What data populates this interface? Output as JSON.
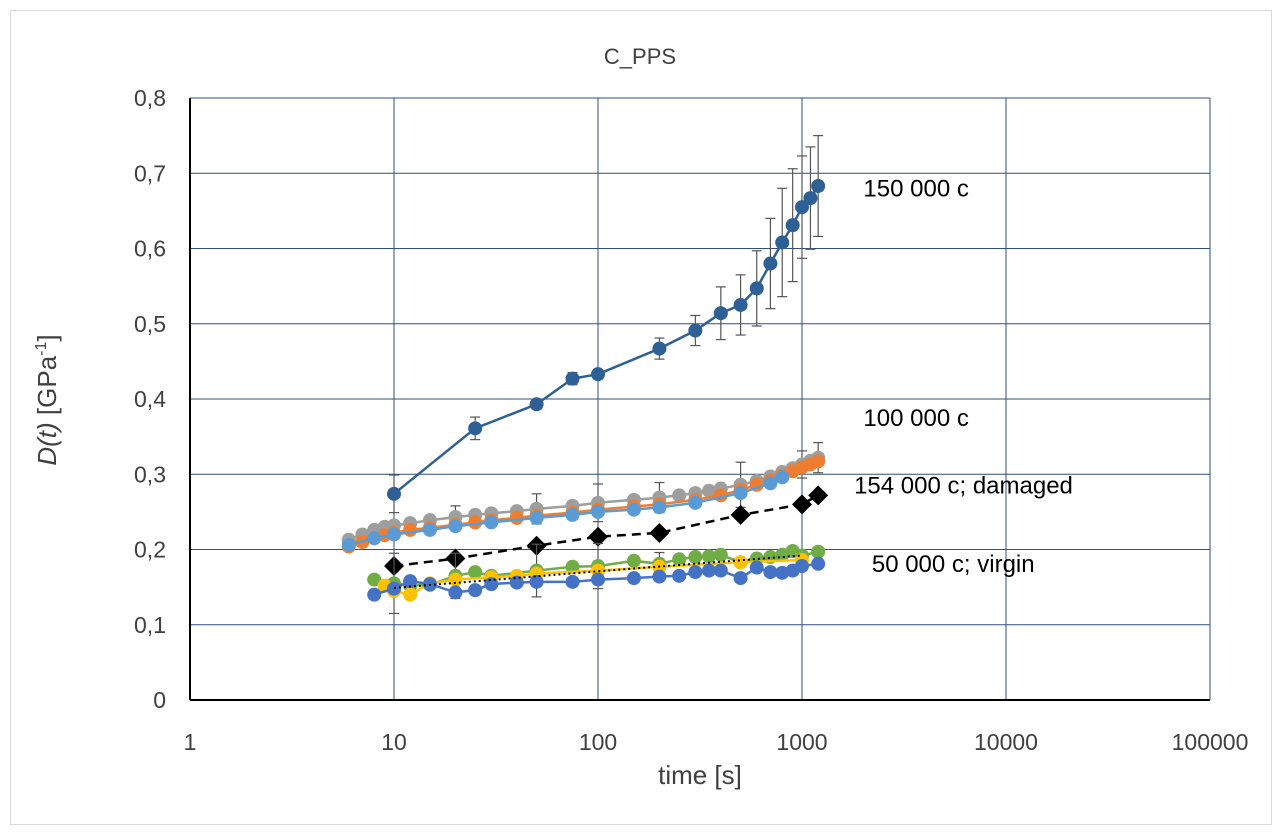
{
  "chart_data": {
    "type": "scatter",
    "title": "C_PPS",
    "xlabel": "time [s]",
    "ylabel": {
      "italic": "D(t)",
      "rest": " [GPa",
      "sup": "-1",
      "close": "]"
    },
    "xscale": "log",
    "xlim": [
      1,
      100000
    ],
    "ylim": [
      0,
      0.8
    ],
    "x_ticks": [
      "1",
      "10",
      "100",
      "1000",
      "10000",
      "100000"
    ],
    "y_ticks": [
      "0",
      "0,1",
      "0,2",
      "0,3",
      "0,4",
      "0,5",
      "0,6",
      "0,7",
      "0,8"
    ],
    "grid": true,
    "annotations": [
      {
        "text": "150 000 c",
        "x": 2000,
        "y": 0.68
      },
      {
        "text": "100 000 c",
        "x": 2000,
        "y": 0.375
      },
      {
        "text": "154 000 c; damaged",
        "x": 1800,
        "y": 0.285
      },
      {
        "text": "50 000 c; virgin",
        "x": 2200,
        "y": 0.181
      }
    ],
    "series": [
      {
        "color": "#2e5f95",
        "marker": "circle",
        "line": "solid",
        "x": [
          10,
          25,
          50,
          75,
          100,
          200,
          300,
          400,
          500,
          600,
          700,
          800,
          900,
          1000,
          1100,
          1200
        ],
        "y": [
          0.274,
          0.361,
          0.393,
          0.427,
          0.433,
          0.467,
          0.491,
          0.514,
          0.525,
          0.547,
          0.58,
          0.608,
          0.631,
          0.655,
          0.667,
          0.683
        ],
        "err": [
          0.025,
          0.015,
          0.006,
          0.008,
          0.006,
          0.014,
          0.02,
          0.035,
          0.04,
          0.05,
          0.06,
          0.072,
          0.075,
          0.068,
          0.068,
          0.067
        ]
      },
      {
        "color": "#9e9e9e",
        "marker": "circle",
        "line": "solid",
        "x": [
          6,
          7,
          8,
          9,
          10,
          12,
          15,
          20,
          25,
          30,
          40,
          50,
          75,
          100,
          150,
          200,
          250,
          300,
          350,
          400,
          500,
          600,
          700,
          800,
          900,
          1000,
          1100,
          1200
        ],
        "y": [
          0.213,
          0.22,
          0.226,
          0.23,
          0.232,
          0.235,
          0.239,
          0.243,
          0.246,
          0.248,
          0.251,
          0.254,
          0.258,
          0.262,
          0.266,
          0.269,
          0.272,
          0.275,
          0.278,
          0.281,
          0.286,
          0.291,
          0.297,
          0.303,
          0.308,
          0.313,
          0.318,
          0.322
        ],
        "err_points": [
          [
            20,
            0.015
          ],
          [
            50,
            0.02
          ],
          [
            100,
            0.025
          ],
          [
            200,
            0.02
          ],
          [
            500,
            0.03
          ],
          [
            1000,
            0.018
          ],
          [
            1200,
            0.02
          ]
        ]
      },
      {
        "color": "#ed7d31",
        "marker": "circle",
        "line": "solid",
        "x": [
          6,
          7,
          8,
          9,
          10,
          12,
          15,
          20,
          25,
          30,
          40,
          50,
          75,
          100,
          150,
          200,
          300,
          400,
          500,
          600,
          700,
          800,
          900,
          1000,
          1100,
          1200
        ],
        "y": [
          0.204,
          0.21,
          0.215,
          0.219,
          0.222,
          0.226,
          0.229,
          0.233,
          0.236,
          0.239,
          0.242,
          0.245,
          0.249,
          0.253,
          0.257,
          0.26,
          0.266,
          0.272,
          0.279,
          0.286,
          0.292,
          0.298,
          0.304,
          0.309,
          0.313,
          0.317
        ]
      },
      {
        "color": "#5b9bd5",
        "marker": "circle",
        "line": "solid",
        "x": [
          6,
          8,
          10,
          15,
          20,
          30,
          50,
          75,
          100,
          150,
          200,
          300,
          500,
          700,
          800
        ],
        "y": [
          0.206,
          0.215,
          0.22,
          0.226,
          0.231,
          0.236,
          0.242,
          0.246,
          0.25,
          0.253,
          0.256,
          0.262,
          0.275,
          0.288,
          0.296
        ]
      },
      {
        "color": "#000000",
        "marker": "diamond",
        "line": "dashed",
        "x": [
          10,
          20,
          50,
          100,
          200,
          500,
          1000,
          1200
        ],
        "y": [
          0.178,
          0.188,
          0.205,
          0.217,
          0.222,
          0.246,
          0.26,
          0.272
        ],
        "err": [
          0.0,
          0.0,
          0.0,
          0.0,
          0.0,
          0.0,
          0.0,
          0.0
        ]
      },
      {
        "color": "#70ad47",
        "marker": "circle",
        "line": "solid",
        "x": [
          8,
          10,
          12,
          15,
          20,
          25,
          30,
          50,
          75,
          100,
          150,
          200,
          250,
          300,
          350,
          400,
          500,
          600,
          700,
          800,
          900,
          1000,
          1200
        ],
        "y": [
          0.16,
          0.155,
          0.152,
          0.153,
          0.165,
          0.17,
          0.165,
          0.172,
          0.177,
          0.178,
          0.185,
          0.181,
          0.187,
          0.19,
          0.191,
          0.193,
          0.183,
          0.188,
          0.19,
          0.193,
          0.198,
          0.192,
          0.197
        ],
        "err_points": [
          [
            10,
            0.04
          ],
          [
            20,
            0.03
          ],
          [
            50,
            0.035
          ],
          [
            100,
            0.03
          ],
          [
            200,
            0.015
          ]
        ]
      },
      {
        "color": "#ffc000",
        "marker": "circle",
        "line": "solid",
        "x": [
          9,
          10,
          12,
          15,
          20,
          30,
          40,
          50,
          100,
          200,
          500,
          1000
        ],
        "y": [
          0.152,
          0.145,
          0.14,
          0.155,
          0.16,
          0.163,
          0.165,
          0.168,
          0.172,
          0.177,
          0.183,
          0.186
        ]
      },
      {
        "color": "#4472c4",
        "marker": "circle",
        "line": "solid",
        "x": [
          8,
          10,
          12,
          15,
          20,
          25,
          30,
          40,
          50,
          75,
          100,
          150,
          200,
          250,
          300,
          350,
          400,
          500,
          600,
          700,
          800,
          900,
          1000,
          1200
        ],
        "y": [
          0.14,
          0.148,
          0.158,
          0.154,
          0.143,
          0.146,
          0.154,
          0.156,
          0.157,
          0.157,
          0.16,
          0.162,
          0.164,
          0.165,
          0.17,
          0.172,
          0.172,
          0.162,
          0.176,
          0.17,
          0.169,
          0.172,
          0.178,
          0.181
        ]
      },
      {
        "color": "#000000",
        "marker": "none",
        "line": "dotted",
        "x": [
          10,
          100,
          1000
        ],
        "y": [
          0.149,
          0.171,
          0.192
        ]
      }
    ]
  }
}
